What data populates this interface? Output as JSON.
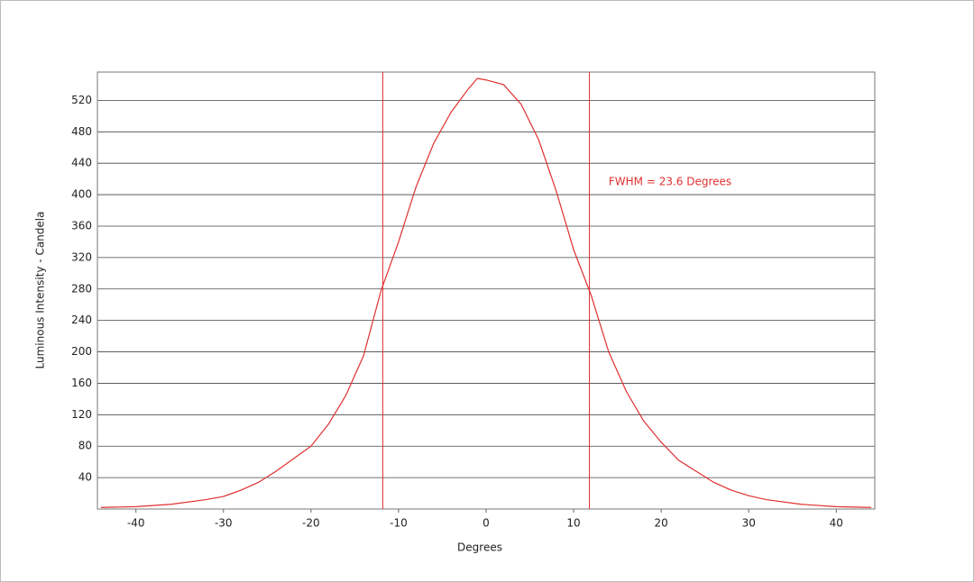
{
  "chart_data": {
    "type": "line",
    "x_label": "Degrees",
    "y_label": "Luminous Intensity - Candela",
    "annotation": "FWHM = 23.6 Degrees",
    "annotation_position": [
      14,
      416
    ],
    "vlines": [
      -11.8,
      11.8
    ],
    "vline_color": "#e03030",
    "x": [
      -44,
      -40,
      -36,
      -32,
      -30,
      -28,
      -26,
      -24,
      -22,
      -20,
      -18,
      -16,
      -14,
      -12,
      -10,
      -8,
      -6,
      -4,
      -2,
      -1,
      0,
      2,
      4,
      6,
      8,
      10,
      12,
      14,
      16,
      18,
      20,
      22,
      24,
      26,
      28,
      30,
      32,
      36,
      40,
      44
    ],
    "series": [
      {
        "color": "#e03030",
        "values": [
          2,
          3,
          6,
          12,
          16,
          24,
          34,
          48,
          64,
          80,
          108,
          145,
          195,
          278,
          340,
          410,
          465,
          505,
          535,
          548,
          546,
          540,
          515,
          470,
          405,
          330,
          272,
          200,
          150,
          112,
          85,
          62,
          48,
          34,
          24,
          17,
          12,
          6,
          3,
          2
        ]
      }
    ],
    "xlim": [
      -44.4,
      44.4
    ],
    "xticks": [
      -40,
      -30,
      -20,
      -10,
      0,
      10,
      20,
      30,
      40
    ],
    "ylim": [
      0,
      556
    ],
    "yticks": [
      40,
      80,
      120,
      160,
      200,
      240,
      280,
      320,
      360,
      400,
      440,
      480,
      520
    ],
    "grid": true
  }
}
